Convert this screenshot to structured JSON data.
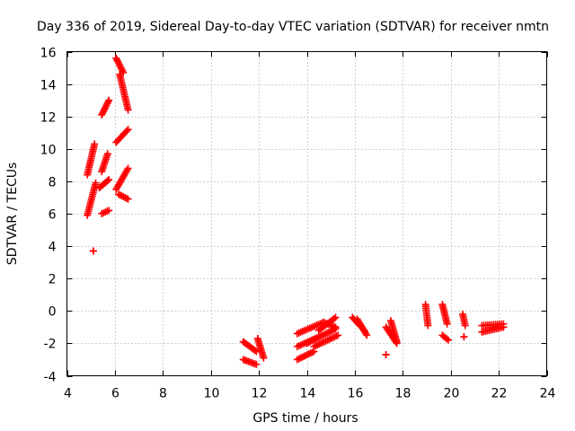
{
  "chart_data": {
    "type": "scatter",
    "title": "Day 336 of 2019, Sidereal Day-to-day VTEC variation (SDTVAR) for receiver nmtn",
    "xlabel": "GPS time / hours",
    "ylabel": "SDTVAR / TECUs",
    "xlim": [
      4,
      24
    ],
    "ylim": [
      -4,
      16
    ],
    "xticks": [
      4,
      6,
      8,
      10,
      12,
      14,
      16,
      18,
      20,
      22,
      24
    ],
    "yticks": [
      -4,
      -2,
      0,
      2,
      4,
      6,
      8,
      10,
      12,
      14,
      16
    ],
    "grid": true,
    "marker": "+",
    "color": "#ff0000",
    "segments": [
      {
        "x": [
          4.85,
          5.15
        ],
        "y": [
          8.4,
          10.3
        ]
      },
      {
        "x": [
          4.85,
          5.2
        ],
        "y": [
          5.9,
          7.9
        ]
      },
      {
        "x": [
          5.1,
          5.1
        ],
        "y": [
          3.7,
          3.7
        ]
      },
      {
        "x": [
          5.35,
          5.75
        ],
        "y": [
          7.6,
          8.1
        ]
      },
      {
        "x": [
          5.45,
          5.7
        ],
        "y": [
          8.6,
          9.7
        ]
      },
      {
        "x": [
          5.45,
          5.75
        ],
        "y": [
          6.0,
          6.2
        ]
      },
      {
        "x": [
          5.45,
          5.75
        ],
        "y": [
          12.1,
          13.0
        ]
      },
      {
        "x": [
          6.05,
          6.35
        ],
        "y": [
          15.6,
          14.7
        ]
      },
      {
        "x": [
          6.2,
          6.55
        ],
        "y": [
          14.6,
          12.4
        ]
      },
      {
        "x": [
          6.05,
          6.55
        ],
        "y": [
          10.4,
          11.2
        ]
      },
      {
        "x": [
          6.05,
          6.55
        ],
        "y": [
          7.5,
          8.8
        ]
      },
      {
        "x": [
          6.15,
          6.55
        ],
        "y": [
          7.2,
          6.9
        ]
      },
      {
        "x": [
          11.35,
          11.9
        ],
        "y": [
          -1.9,
          -2.5
        ]
      },
      {
        "x": [
          11.35,
          11.9
        ],
        "y": [
          -3.0,
          -3.3
        ]
      },
      {
        "x": [
          11.95,
          12.2
        ],
        "y": [
          -1.7,
          -2.9
        ]
      },
      {
        "x": [
          13.6,
          14.3
        ],
        "y": [
          -3.0,
          -2.5
        ]
      },
      {
        "x": [
          13.6,
          14.5
        ],
        "y": [
          -2.2,
          -1.6
        ]
      },
      {
        "x": [
          13.6,
          14.7
        ],
        "y": [
          -1.4,
          -0.7
        ]
      },
      {
        "x": [
          14.0,
          15.2
        ],
        "y": [
          -2.0,
          -1.1
        ]
      },
      {
        "x": [
          14.3,
          15.3
        ],
        "y": [
          -2.2,
          -1.5
        ]
      },
      {
        "x": [
          14.5,
          15.2
        ],
        "y": [
          -1.2,
          -0.4
        ]
      },
      {
        "x": [
          14.7,
          15.2
        ],
        "y": [
          -0.7,
          -1.0
        ]
      },
      {
        "x": [
          15.9,
          16.4
        ],
        "y": [
          -0.4,
          -1.2
        ]
      },
      {
        "x": [
          16.1,
          16.5
        ],
        "y": [
          -0.5,
          -1.5
        ]
      },
      {
        "x": [
          17.3,
          17.75
        ],
        "y": [
          -1.0,
          -2.0
        ]
      },
      {
        "x": [
          17.3,
          17.3
        ],
        "y": [
          -2.7,
          -2.7
        ]
      },
      {
        "x": [
          17.5,
          17.75
        ],
        "y": [
          -0.6,
          -1.9
        ]
      },
      {
        "x": [
          18.95,
          19.05
        ],
        "y": [
          0.4,
          -0.9
        ]
      },
      {
        "x": [
          19.65,
          19.85
        ],
        "y": [
          0.4,
          -0.8
        ]
      },
      {
        "x": [
          19.65,
          19.9
        ],
        "y": [
          -1.5,
          -1.8
        ]
      },
      {
        "x": [
          20.5,
          20.6
        ],
        "y": [
          -0.2,
          -0.9
        ]
      },
      {
        "x": [
          20.55,
          20.55
        ],
        "y": [
          -1.6,
          -1.6
        ]
      },
      {
        "x": [
          21.3,
          22.2
        ],
        "y": [
          -0.9,
          -0.8
        ]
      },
      {
        "x": [
          21.3,
          22.2
        ],
        "y": [
          -1.3,
          -1.0
        ]
      }
    ]
  }
}
